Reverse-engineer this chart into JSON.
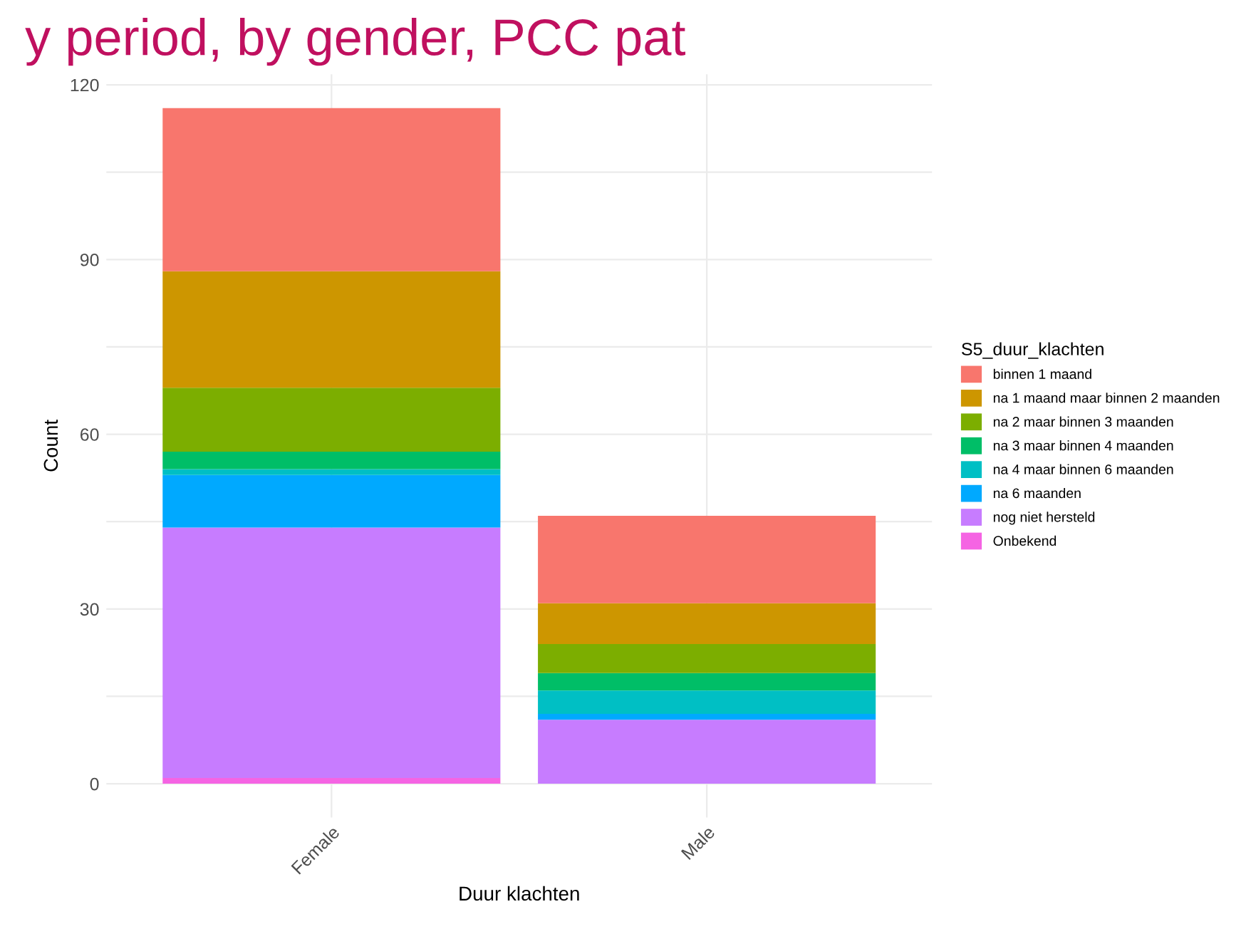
{
  "chart_data": {
    "type": "bar",
    "stacked": true,
    "title": "y period, by gender, PCC pat",
    "xlabel": "Duur klachten",
    "ylabel": "Count",
    "legend_title": "S5_duur_klachten",
    "categories": [
      "Female",
      "Male"
    ],
    "series": [
      {
        "name": "Onbekend",
        "color": "#f564e3",
        "values": [
          1,
          0
        ]
      },
      {
        "name": "nog niet hersteld",
        "color": "#c77cff",
        "values": [
          43,
          11
        ]
      },
      {
        "name": "na 6 maanden",
        "color": "#00a9ff",
        "values": [
          9,
          1
        ]
      },
      {
        "name": "na 4 maar binnen 6 maanden",
        "color": "#00bfc4",
        "values": [
          1,
          4
        ]
      },
      {
        "name": "na 3 maar binnen 4 maanden",
        "color": "#00be67",
        "values": [
          3,
          3
        ]
      },
      {
        "name": "na 2 maar binnen 3 maanden",
        "color": "#7cae00",
        "values": [
          11,
          5
        ]
      },
      {
        "name": "na 1 maand maar binnen 2 maanden",
        "color": "#cd9600",
        "values": [
          20,
          7
        ]
      },
      {
        "name": "binnen 1 maand",
        "color": "#f8766d",
        "values": [
          28,
          15
        ]
      }
    ],
    "ylim": [
      -5.8,
      121.8
    ],
    "yticks": [
      0,
      {
        "value": 15,
        "label": null
      },
      30,
      {
        "value": 45,
        "label": null
      },
      60,
      {
        "value": 75,
        "label": null
      },
      90,
      {
        "value": 105,
        "label": null
      },
      120
    ],
    "grid": true,
    "legend": "right"
  }
}
